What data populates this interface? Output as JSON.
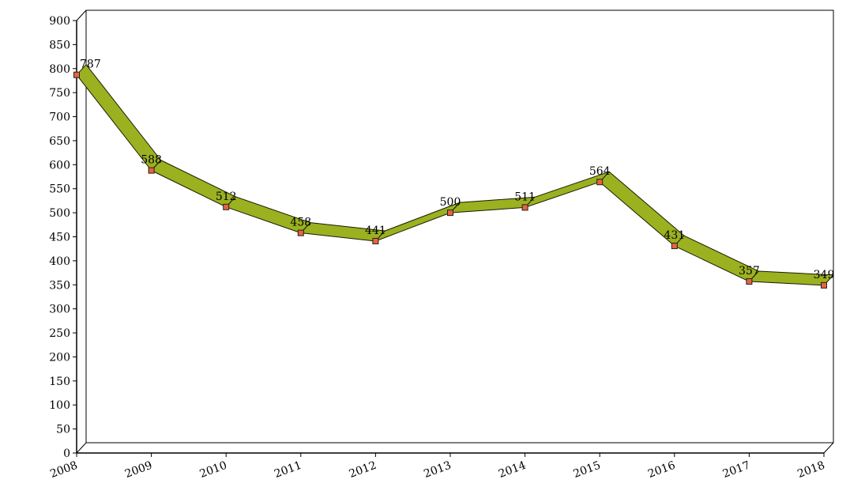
{
  "chart_data": {
    "type": "line",
    "title": "",
    "xlabel": "",
    "ylabel": "",
    "categories": [
      "2008",
      "2009",
      "2010",
      "2011",
      "2012",
      "2013",
      "2014",
      "2015",
      "2016",
      "2017",
      "2018"
    ],
    "series": [
      {
        "values": [
          787,
          588,
          512,
          458,
          441,
          500,
          511,
          564,
          431,
          357,
          349
        ]
      }
    ],
    "ylim": [
      0,
      900
    ],
    "y_ticks": [
      0,
      50,
      100,
      150,
      200,
      250,
      300,
      350,
      400,
      450,
      500,
      550,
      600,
      650,
      700,
      750,
      800,
      850,
      900
    ],
    "grid": false,
    "legend": "none",
    "style": "3d-ribbon",
    "colors": {
      "ribbon": "#9bb120",
      "ribbon_outline": "#1a1a00",
      "marker": "#e8643c",
      "marker_outline": "#222222",
      "axis": "#000000"
    }
  }
}
